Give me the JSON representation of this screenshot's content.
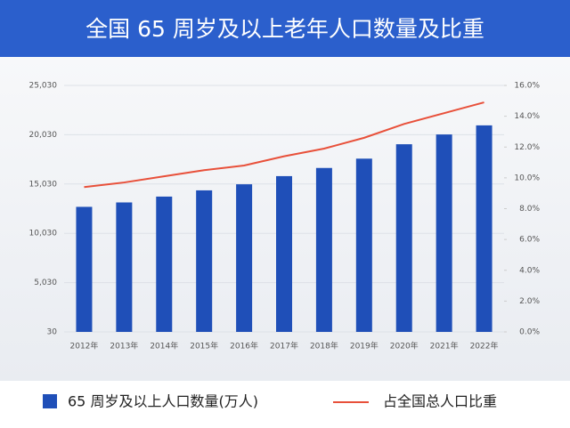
{
  "chart_data": {
    "type": "bar_line",
    "title": "全国 65 周岁及以上老年人口数量及比重",
    "categories": [
      "2012年",
      "2013年",
      "2014年",
      "2015年",
      "2016年",
      "2017年",
      "2018年",
      "2019年",
      "2020年",
      "2021年",
      "2022年"
    ],
    "series": [
      {
        "name": "65 周岁及以上人口数量(万人)",
        "type": "bar",
        "color": "#1f4fb8",
        "values": [
          12714,
          13161,
          13755,
          14386,
          15003,
          15831,
          16658,
          17603,
          19064,
          20056,
          20978
        ]
      },
      {
        "name": "占全国总人口比重",
        "type": "line",
        "axis": "y2",
        "color": "#e8503a",
        "values": [
          9.4,
          9.7,
          10.1,
          10.5,
          10.8,
          11.4,
          11.9,
          12.6,
          13.5,
          14.2,
          14.9
        ]
      }
    ],
    "ylim": [
      30,
      25030
    ],
    "yticks": [
      30,
      {
        "value": 5030,
        "label": "5,030"
      },
      {
        "value": 10030,
        "label": "10,030"
      },
      {
        "value": 15030,
        "label": "15,030"
      },
      {
        "value": 20030,
        "label": "20,030"
      },
      {
        "value": 25030,
        "label": "25,030"
      }
    ],
    "y2lim": [
      0,
      16
    ],
    "y2ticks": [
      {
        "value": 0,
        "label": "0.0%"
      },
      {
        "value": 2,
        "label": "2.0%"
      },
      {
        "value": 4,
        "label": "4.0%"
      },
      {
        "value": 6,
        "label": "6.0%"
      },
      {
        "value": 8,
        "label": "8.0%"
      },
      {
        "value": 10,
        "label": "10.0%"
      },
      {
        "value": 12,
        "label": "12.0%"
      },
      {
        "value": 14,
        "label": "14.0%"
      },
      {
        "value": 16,
        "label": "16.0%"
      }
    ],
    "grid": true
  }
}
